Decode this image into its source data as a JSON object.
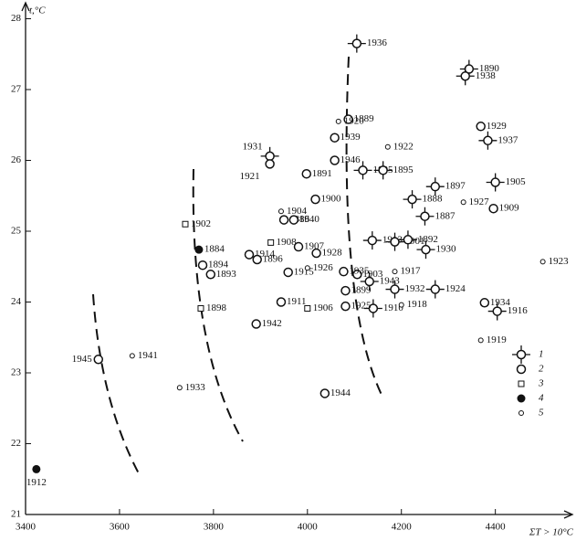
{
  "chart_data": {
    "type": "scatter",
    "y_label": "t,°C",
    "x_label": "ΣT > 10°C",
    "xlim": [
      3400,
      4560
    ],
    "ylim": [
      21,
      28.2
    ],
    "xticks": [
      3400,
      3600,
      3800,
      4000,
      4200,
      4400
    ],
    "yticks": [
      21,
      22,
      23,
      24,
      25,
      26,
      27,
      28
    ],
    "color": "#111111",
    "series": [
      {
        "name": "1",
        "marker": "cross",
        "labels": [
          "1936",
          "1890",
          "1938",
          "1931",
          "1937",
          "1885",
          "1895",
          "1897",
          "1905",
          "1888",
          "1887",
          "1913",
          "1901",
          "1892",
          "1930",
          "1943",
          "1932",
          "1924",
          "1910",
          "1916"
        ],
        "x": [
          4105,
          4344,
          4336,
          3920,
          4384,
          4118,
          4161,
          4272,
          4400,
          4223,
          4250,
          4138,
          4186,
          4214,
          4252,
          4132,
          4186,
          4272,
          4140,
          4404
        ],
        "y": [
          27.65,
          27.29,
          27.19,
          26.06,
          26.28,
          25.86,
          25.86,
          25.63,
          25.69,
          25.45,
          25.21,
          24.87,
          24.85,
          24.88,
          24.74,
          24.29,
          24.18,
          24.18,
          23.91,
          23.87
        ]
      },
      {
        "name": "2",
        "marker": "circle",
        "labels": [
          "1889",
          "1939",
          "1929",
          "1946",
          "1921",
          "1891",
          "1909",
          "1900",
          "1886",
          "1940",
          "1894",
          "1893",
          "1914",
          "1896",
          "1907",
          "1928",
          "1903",
          "1935",
          "1899",
          "1915",
          "1925",
          "1911",
          "1942",
          "1934",
          "1945",
          "1944"
        ],
        "x": [
          4087,
          4058,
          4369,
          4058,
          3920,
          3998,
          4396,
          4017,
          3950,
          3971,
          3777,
          3794,
          3876,
          3893,
          3981,
          4019,
          4106,
          4077,
          4081,
          3959,
          4081,
          3944,
          3891,
          4377,
          3555,
          4037
        ],
        "y": [
          26.58,
          26.32,
          26.48,
          26.0,
          25.95,
          25.81,
          25.32,
          25.45,
          25.16,
          25.16,
          24.52,
          24.39,
          24.67,
          24.6,
          24.78,
          24.69,
          24.39,
          24.43,
          24.16,
          24.42,
          23.94,
          24.0,
          23.69,
          23.99,
          23.19,
          22.71
        ]
      },
      {
        "name": "3",
        "marker": "square",
        "labels": [
          "1902",
          "1908",
          "1906",
          "1898"
        ],
        "x": [
          3740,
          3922,
          4000,
          3773
        ],
        "y": [
          25.1,
          24.84,
          23.91,
          23.91
        ]
      },
      {
        "name": "4",
        "marker": "filled",
        "labels": [
          "1884",
          "1912"
        ],
        "x": [
          3769,
          3423
        ],
        "y": [
          24.74,
          21.64
        ]
      },
      {
        "name": "5",
        "marker": "small",
        "labels": [
          "1920",
          "1922",
          "1927",
          "1904",
          "1917",
          "1926",
          "1918",
          "1919",
          "1923",
          "1941",
          "1933"
        ],
        "x": [
          4066,
          4171,
          4332,
          3944,
          4186,
          4000,
          4200,
          4369,
          4501,
          3627,
          3728
        ],
        "y": [
          26.55,
          26.19,
          25.41,
          25.28,
          24.43,
          24.48,
          23.96,
          23.46,
          24.57,
          23.24,
          22.79
        ]
      }
    ]
  }
}
